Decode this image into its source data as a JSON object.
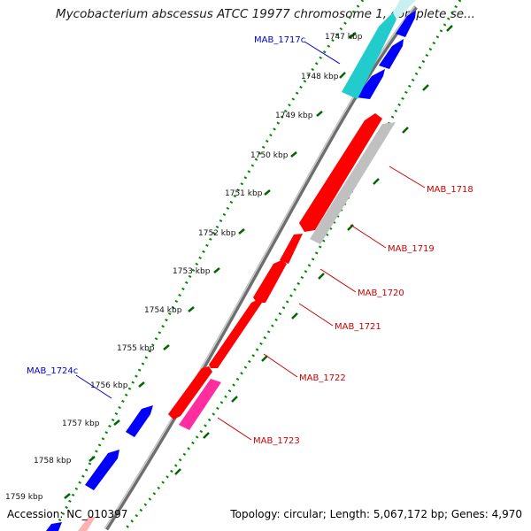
{
  "title": "Mycobacterium abscessus ATCC 19977 chromosome 1, complete se...",
  "footer": {
    "accession": "Accession: NC_010397",
    "stats": "Topology: circular; Length: 5,067,172 bp; Genes: 4,970"
  },
  "colors": {
    "forward_gene": "#0000ff",
    "reverse_gene": "#ff0000",
    "label_forward": "#0000cc",
    "label_reverse": "#cc0000",
    "rRNA": "#00cccc",
    "pseudo": "#c0c0c0",
    "pink": "#ff33aa",
    "backbone": "#888888",
    "dots": "#008800"
  },
  "scale_labels": [
    "1747 kbp",
    "1748 kbp",
    "1749 kbp",
    "1750 kbp",
    "1751 kbp",
    "1752 kbp",
    "1753 kbp",
    "1754 kbp",
    "1755 kbp",
    "1756 kbp",
    "1757 kbp",
    "1758 kbp",
    "1759 kbp"
  ],
  "gene_labels": [
    {
      "text": "MAB_1717c",
      "strand": "forward"
    },
    {
      "text": "MAB_1718",
      "strand": "reverse"
    },
    {
      "text": "MAB_1719",
      "strand": "reverse"
    },
    {
      "text": "MAB_1720",
      "strand": "reverse"
    },
    {
      "text": "MAB_1721",
      "strand": "reverse"
    },
    {
      "text": "MAB_1722",
      "strand": "reverse"
    },
    {
      "text": "MAB_1723",
      "strand": "reverse"
    },
    {
      "text": "MAB_1724c",
      "strand": "forward"
    }
  ]
}
